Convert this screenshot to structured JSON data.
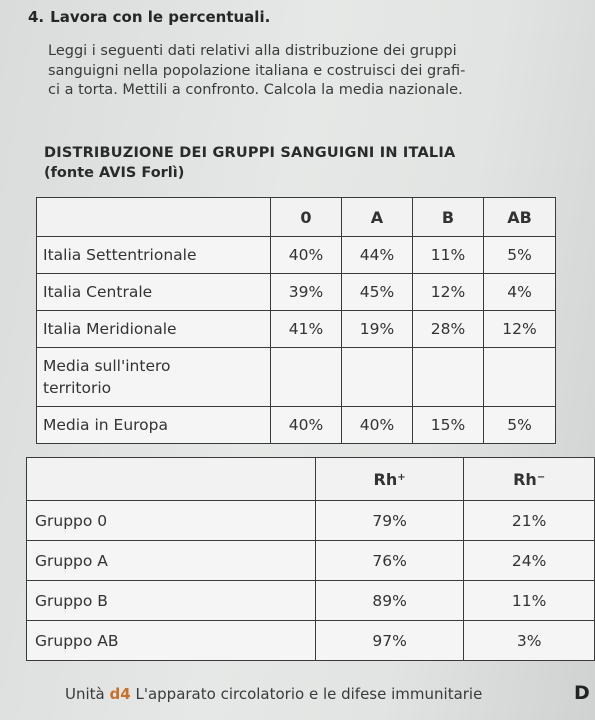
{
  "exercise": {
    "number": "4.",
    "title": "Lavora con le percentuali.",
    "intro_lines": [
      "Leggi i seguenti dati relativi alla distribuzione dei gruppi",
      "sanguigni nella popolazione italiana e costruisci dei grafi-",
      "ci a torta. Mettili a confronto. Calcola la media nazionale."
    ]
  },
  "section": {
    "title": "DISTRIBUZIONE DEI GRUPPI SANGUIGNI IN ITALIA",
    "source": "(fonte AVIS Forlì)"
  },
  "table1": {
    "headers": [
      "",
      "0",
      "A",
      "B",
      "AB"
    ],
    "rows": [
      {
        "label": "Italia Settentrionale",
        "values": [
          "40%",
          "44%",
          "11%",
          "5%"
        ]
      },
      {
        "label": "Italia Centrale",
        "values": [
          "39%",
          "45%",
          "12%",
          "4%"
        ]
      },
      {
        "label": "Italia Meridionale",
        "values": [
          "41%",
          "19%",
          "28%",
          "12%"
        ]
      },
      {
        "label_line1": "Media sull'intero",
        "label_line2": "territorio",
        "values": [
          "",
          "",
          "",
          ""
        ]
      },
      {
        "label": "Media in Europa",
        "values": [
          "40%",
          "40%",
          "15%",
          "5%"
        ]
      }
    ]
  },
  "table2": {
    "headers": {
      "rh_pos_base": "Rh",
      "rh_pos_sign": "+",
      "rh_neg_base": "Rh",
      "rh_neg_sign": "−"
    },
    "rows": [
      {
        "label": "Gruppo 0",
        "pos": "79%",
        "neg": "21%"
      },
      {
        "label": "Gruppo A",
        "pos": "76%",
        "neg": "24%"
      },
      {
        "label": "Gruppo B",
        "pos": "89%",
        "neg": "11%"
      },
      {
        "label": "Gruppo AB",
        "pos": "97%",
        "neg": "3%"
      }
    ]
  },
  "footer": {
    "prefix": "Unità",
    "unit_code": "d4",
    "chapter": "L'apparato circolatorio e le difese immunitarie",
    "badge": "D"
  }
}
